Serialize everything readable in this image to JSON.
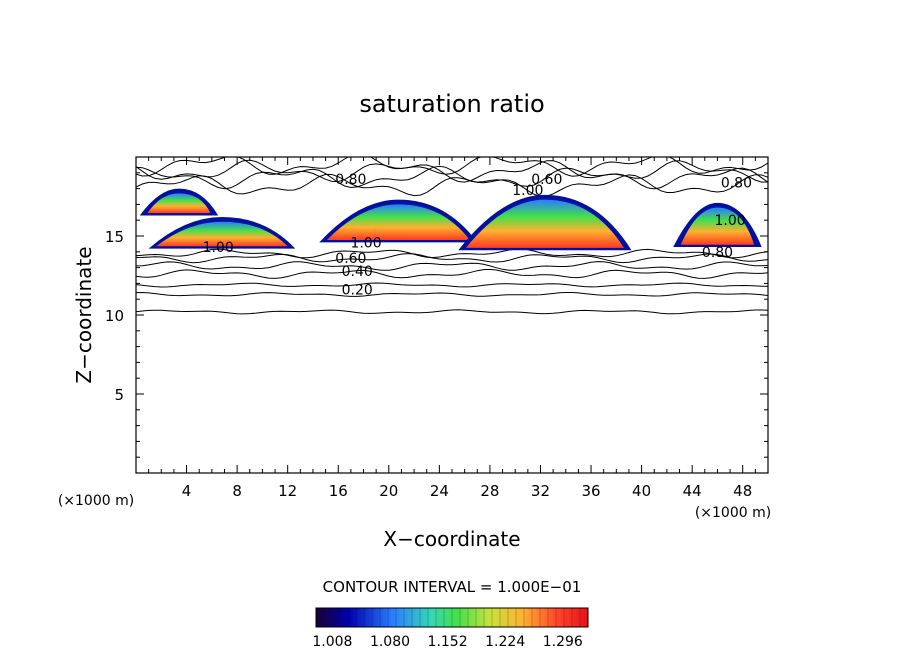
{
  "chart_data": {
    "type": "heatmap",
    "title": "saturation ratio",
    "xlabel": "X−coordinate",
    "ylabel": "Z−coordinate",
    "x_unit_label": "(×1000 m)",
    "y_unit_label": "(×1000 m)",
    "xlim": [
      0,
      50
    ],
    "ylim": [
      0,
      20
    ],
    "x_ticks": [
      "4",
      "8",
      "12",
      "16",
      "20",
      "24",
      "28",
      "32",
      "36",
      "40",
      "44",
      "48"
    ],
    "x_tick_values": [
      4,
      8,
      12,
      16,
      20,
      24,
      28,
      32,
      36,
      40,
      44,
      48
    ],
    "y_ticks": [
      "5",
      "10",
      "15"
    ],
    "y_tick_values": [
      5,
      10,
      15
    ],
    "contour_labels": [
      {
        "text": "0.80",
        "x": 17.0,
        "z": 18.6
      },
      {
        "text": "0.60",
        "x": 32.5,
        "z": 18.6
      },
      {
        "text": "1.00",
        "x": 31.0,
        "z": 17.9
      },
      {
        "text": "0.80",
        "x": 47.5,
        "z": 18.4
      },
      {
        "text": "1.00",
        "x": 6.5,
        "z": 14.3
      },
      {
        "text": "1.00",
        "x": 18.2,
        "z": 14.6
      },
      {
        "text": "0.60",
        "x": 17.0,
        "z": 13.6
      },
      {
        "text": "0.40",
        "x": 17.5,
        "z": 12.8
      },
      {
        "text": "0.20",
        "x": 17.5,
        "z": 11.6
      },
      {
        "text": "1.00",
        "x": 47.0,
        "z": 16.0
      },
      {
        "text": "0.80",
        "x": 46.0,
        "z": 14.0
      }
    ],
    "contour_interval_text": "CONTOUR INTERVAL = 1.000E−01",
    "colorbar": {
      "min": 1.0,
      "max": 1.34,
      "tick_labels": [
        "1.008",
        "1.080",
        "1.152",
        "1.224",
        "1.296"
      ],
      "tick_values": [
        1.008,
        1.08,
        1.152,
        1.224,
        1.296
      ]
    },
    "grid": false
  }
}
